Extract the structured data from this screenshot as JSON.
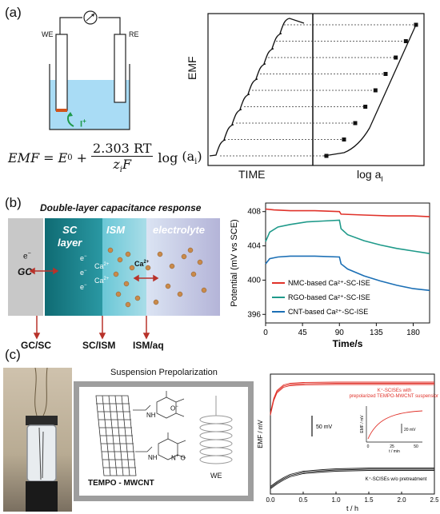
{
  "panel_a": {
    "label": "(a)",
    "we": "WE",
    "re": "RE",
    "ion": "I",
    "ion_charge": "+",
    "eq": {
      "lhs": "EMF",
      "e0": "E",
      "e0_sup": "0",
      "num": "2.303 RT",
      "den_z": "z",
      "den_i": "i",
      "den_f": "F",
      "log": "log",
      "arg": "(a",
      "arg_i": "i",
      "arg_close": ")"
    },
    "chart_left": {
      "ylabel": "EMF",
      "xlabel": "TIME"
    },
    "chart_right": {
      "xlabel": "log a",
      "xlabel_sub": "I"
    }
  },
  "panel_b": {
    "label": "(b)",
    "title": "Double-layer capacitance response",
    "layers": {
      "sc": "SC",
      "sc2": "layer",
      "ism": "ISM",
      "electrolyte": "electrolyte"
    },
    "gc": "GC",
    "electron": "e",
    "electron_sup": "−",
    "ca": "Ca",
    "ca_sup": "2+",
    "interfaces": [
      "GC/SC",
      "SC/ISM",
      "ISM/aq"
    ]
  },
  "panel_c": {
    "label": "(c)",
    "susp_title": "Suspension Prepolarization",
    "tempo_label": "TEMPO - MWCNT",
    "we_label": "WE",
    "nh": "N",
    "h": "H",
    "o_minus": "O",
    "o_minus_sup": "−",
    "n_plus": "N",
    "n_plus_sup": "+",
    "o": "O"
  },
  "chart_data": [
    {
      "type": "line",
      "title": "",
      "xlabel": "Time/s",
      "ylabel": "Potential (mV vs SCE)",
      "xlim": [
        0,
        200
      ],
      "ylim": [
        395,
        409
      ],
      "xticks": [
        0,
        45,
        90,
        135,
        180
      ],
      "yticks": [
        396,
        400,
        404,
        408
      ],
      "legend_position": "bottom-right",
      "series": [
        {
          "name": "NMC-based Ca²⁺-SC-ISE",
          "color": "#e0322a",
          "x": [
            0,
            10,
            30,
            60,
            90,
            92,
            120,
            150,
            180,
            200
          ],
          "y": [
            408.3,
            408.2,
            408.1,
            408.1,
            408.0,
            407.7,
            407.6,
            407.5,
            407.5,
            407.4
          ]
        },
        {
          "name": "RGO-based Ca²⁺-SC-ISE",
          "color": "#1f9a8a",
          "x": [
            0,
            5,
            15,
            30,
            50,
            70,
            90,
            92,
            100,
            120,
            140,
            160,
            180,
            200
          ],
          "y": [
            404.5,
            405.6,
            406.2,
            406.5,
            406.8,
            406.9,
            407.0,
            406.0,
            405.3,
            404.6,
            404.1,
            403.7,
            403.4,
            403.1
          ]
        },
        {
          "name": "CNT-based Ca²⁺-SC-ISE",
          "color": "#1b6fb5",
          "x": [
            0,
            5,
            15,
            30,
            60,
            90,
            92,
            100,
            120,
            140,
            160,
            180,
            200
          ],
          "y": [
            401.9,
            402.5,
            402.7,
            402.8,
            402.8,
            402.7,
            401.9,
            401.3,
            400.5,
            399.9,
            399.4,
            399.0,
            398.8
          ]
        }
      ]
    },
    {
      "type": "line",
      "title": "",
      "xlabel": "t / h",
      "ylabel": "EMF / mV",
      "xlim": [
        0,
        2.5
      ],
      "xticks": [
        0.0,
        0.5,
        1.0,
        1.5,
        2.0,
        2.5
      ],
      "scalebar": "50 mV",
      "legend_position": "inline",
      "series": [
        {
          "name": "K⁺-SCISEs with prepolarized TEMPO-MWCNT suspension",
          "color": "#e0322a",
          "x": [
            0,
            0.05,
            0.1,
            0.2,
            0.3,
            0.5,
            1.0,
            1.5,
            2.0,
            2.5
          ],
          "y": [
            100,
            118,
            128,
            135,
            137,
            138,
            138.5,
            138.5,
            138.5,
            138.5
          ]
        },
        {
          "name": "K⁺-SCISEs w/o pretreatment",
          "color": "#222222",
          "x": [
            0,
            0.1,
            0.2,
            0.3,
            0.5,
            0.8,
            1.0,
            1.5,
            2.0,
            2.5
          ],
          "y": [
            8,
            14,
            19,
            23,
            27,
            29,
            30,
            31,
            31,
            31
          ]
        }
      ],
      "inset": {
        "xlabel": "t / min",
        "ylabel": "EMF / mV",
        "xticks": [
          0,
          25,
          50
        ],
        "scalebar": "20 mV"
      }
    }
  ]
}
